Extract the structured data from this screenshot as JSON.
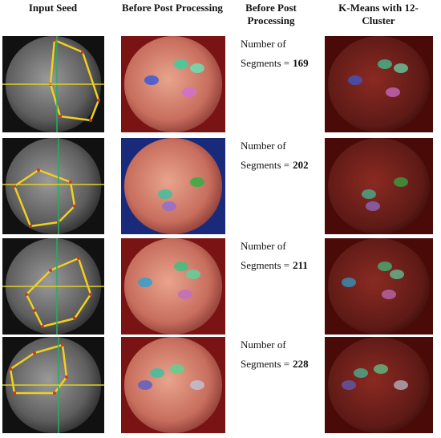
{
  "header": {
    "columns": [
      [
        "Input Seed"
      ],
      [
        "Before Post Processing"
      ],
      [
        "Before Post",
        "Processing"
      ],
      [
        "K-Means with 12-",
        "Cluster"
      ]
    ]
  },
  "rows": [
    {
      "line1": "Number of",
      "line2": "Segments =",
      "count": 169
    },
    {
      "line1": "Number of",
      "line2": "Segments =",
      "count": 202
    },
    {
      "line1": "Number of",
      "line2": "Segments =",
      "count": 211
    },
    {
      "line1": "Number of",
      "line2": "Segments =",
      "count": 228
    }
  ]
}
